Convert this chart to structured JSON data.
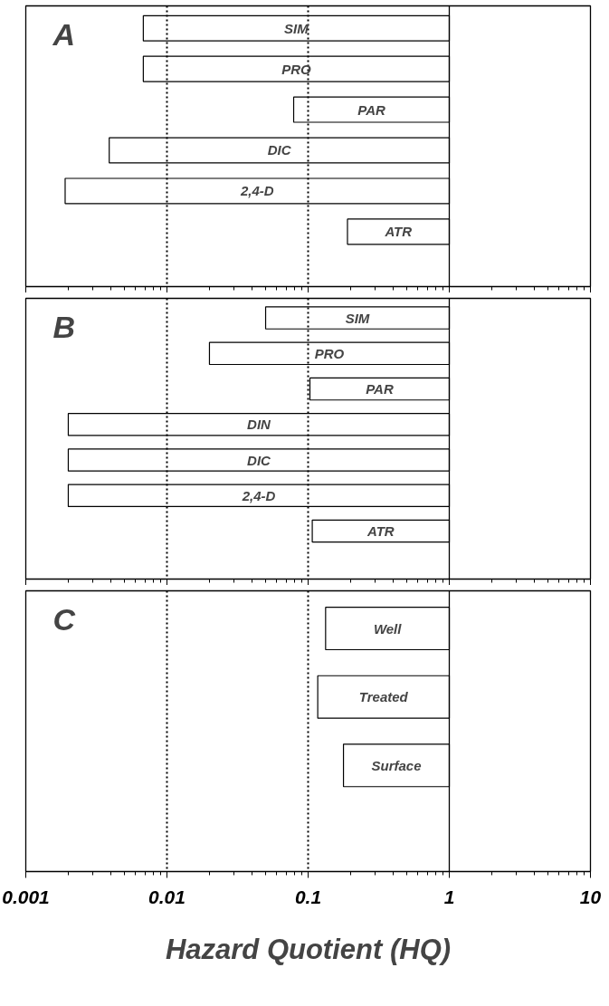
{
  "chart_data": [
    {
      "type": "bar",
      "orientation": "horizontal",
      "title": "A",
      "tick_labels": false,
      "categories": [
        "SIM",
        "PRO",
        "PAR",
        "DIC",
        "2,4-D",
        "ATR"
      ],
      "base": [
        0.0068,
        0.0068,
        0.079,
        0.0039,
        0.0019,
        0.19
      ],
      "values": [
        0.9932,
        0.9932,
        0.921,
        0.9961,
        0.9981,
        0.81
      ],
      "color": "#ffffff",
      "log": "x",
      "xlim": [
        0.001,
        10
      ],
      "xticks": [
        0.001,
        0.01,
        0.1,
        1,
        10
      ],
      "ref_lines": [
        {
          "axis": "x",
          "value": 0.01,
          "line_style": "dotted"
        },
        {
          "axis": "x",
          "value": 0.1,
          "line_style": "dotted"
        },
        {
          "axis": "x",
          "value": 1,
          "line_style": "solid"
        }
      ]
    },
    {
      "type": "bar",
      "orientation": "horizontal",
      "title": "B",
      "tick_labels": false,
      "categories": [
        "SIM",
        "PRO",
        "PAR",
        "DIN",
        "DIC",
        "2,4-D",
        "ATR"
      ],
      "base": [
        0.05,
        0.02,
        0.103,
        0.002,
        0.002,
        0.002,
        0.107
      ],
      "values": [
        0.95,
        0.98,
        0.897,
        0.998,
        0.998,
        0.998,
        0.893
      ],
      "color": "#ffffff",
      "log": "x",
      "xlim": [
        0.001,
        10
      ],
      "xticks": [
        0.001,
        0.01,
        0.1,
        1,
        10
      ],
      "ref_lines": [
        {
          "axis": "x",
          "value": 0.01,
          "line_style": "dotted"
        },
        {
          "axis": "x",
          "value": 0.1,
          "line_style": "dotted"
        },
        {
          "axis": "x",
          "value": 1,
          "line_style": "solid"
        }
      ]
    },
    {
      "type": "bar",
      "orientation": "horizontal",
      "title": "C",
      "tick_labels": "x",
      "xlabel": "Hazard Quotient (HQ)",
      "categories": [
        "Well",
        "Treated",
        "Surface"
      ],
      "base": [
        0.133,
        0.117,
        0.178
      ],
      "values": [
        0.867,
        0.883,
        0.822
      ],
      "color": "#ffffff",
      "log": "x",
      "xlim": [
        0.001,
        10
      ],
      "xticks": [
        0.001,
        0.01,
        0.1,
        1,
        10
      ],
      "ref_lines": [
        {
          "axis": "x",
          "value": 0.01,
          "line_style": "dotted"
        },
        {
          "axis": "x",
          "value": 0.1,
          "line_style": "dotted"
        },
        {
          "axis": "x",
          "value": 1,
          "line_style": "solid"
        }
      ]
    }
  ]
}
